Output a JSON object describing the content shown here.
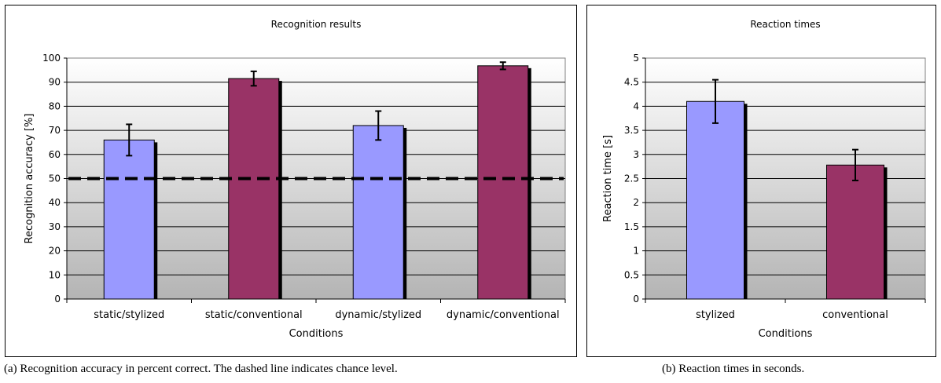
{
  "chart_data": [
    {
      "type": "bar",
      "title": "Recognition results",
      "xlabel": "Conditions",
      "ylabel": "Recognition accuracy [%]",
      "ylim": [
        0,
        100
      ],
      "ytick_step": 10,
      "yticks": [
        "0",
        "10",
        "20",
        "30",
        "40",
        "50",
        "60",
        "70",
        "80",
        "90",
        "100"
      ],
      "categories": [
        "static/stylized",
        "static/conventional",
        "dynamic/stylized",
        "dynamic/conventional"
      ],
      "values": [
        66,
        91.5,
        72,
        96.8
      ],
      "errors": [
        6.5,
        3,
        6,
        1.5
      ],
      "bar_colors": [
        "#9999ff",
        "#993366",
        "#9999ff",
        "#993366"
      ],
      "reference_line": {
        "value": 50,
        "style": "dashed"
      },
      "grid": true,
      "legend": "none",
      "caption": "(a) Recognition accuracy in percent correct. The dashed line indicates chance level."
    },
    {
      "type": "bar",
      "title": "Reaction times",
      "xlabel": "Conditions",
      "ylabel": "Reaction time [s]",
      "ylim": [
        0,
        5
      ],
      "ytick_step": 0.5,
      "yticks": [
        "0",
        "0.5",
        "1",
        "1.5",
        "2",
        "2.5",
        "3",
        "3.5",
        "4",
        "4.5",
        "5"
      ],
      "categories": [
        "stylized",
        "conventional"
      ],
      "values": [
        4.1,
        2.78
      ],
      "errors": [
        0.45,
        0.32
      ],
      "bar_colors": [
        "#9999ff",
        "#993366"
      ],
      "grid": true,
      "legend": "none",
      "caption": "(b) Reaction times in seconds."
    }
  ]
}
